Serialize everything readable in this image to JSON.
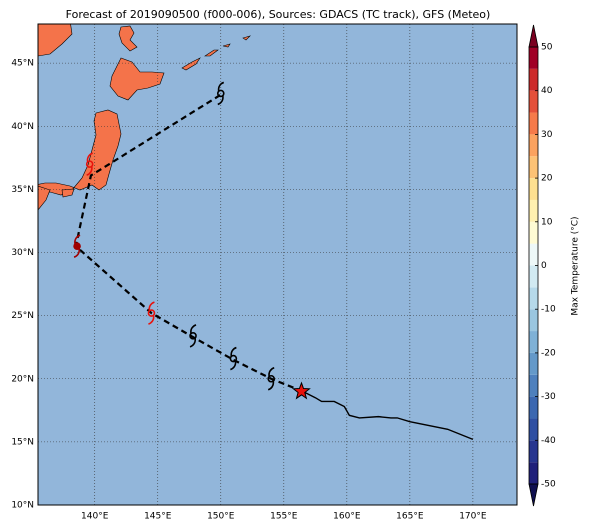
{
  "chart_data": {
    "type": "map",
    "title": "Forecast of 2019090500 (f000-006), Sources: GDACS (TC track), GFS (Meteo)",
    "xlim": [
      135.5,
      173.5
    ],
    "ylim": [
      10,
      48.1
    ],
    "xticks": [
      {
        "value": 140,
        "label": "140°E"
      },
      {
        "value": 145,
        "label": "145°E"
      },
      {
        "value": 150,
        "label": "150°E"
      },
      {
        "value": 155,
        "label": "155°E"
      },
      {
        "value": 160,
        "label": "160°E"
      },
      {
        "value": 165,
        "label": "165°E"
      },
      {
        "value": 170,
        "label": "170°E"
      }
    ],
    "yticks": [
      {
        "value": 10,
        "label": "10°N"
      },
      {
        "value": 15,
        "label": "15°N"
      },
      {
        "value": 20,
        "label": "20°N"
      },
      {
        "value": 25,
        "label": "25°N"
      },
      {
        "value": 30,
        "label": "30°N"
      },
      {
        "value": 35,
        "label": "35°N"
      },
      {
        "value": 40,
        "label": "40°N"
      },
      {
        "value": 45,
        "label": "45°N"
      }
    ],
    "grid": true,
    "observed_track": {
      "color": "#000000",
      "lon": [
        156.5,
        157.5,
        158,
        159,
        159.8,
        160.2,
        161,
        162.5,
        163.5,
        164,
        165,
        168,
        170
      ],
      "lat": [
        19,
        18.5,
        18.2,
        18.2,
        17.8,
        17.1,
        16.9,
        17,
        16.9,
        16.9,
        16.6,
        16,
        15.2
      ]
    },
    "forecast_track": {
      "color": "#000000",
      "lon": [
        156.5,
        154,
        151,
        147.8,
        144.5,
        138.5,
        139.7,
        150
      ],
      "lat": [
        19,
        20,
        21.5,
        23.3,
        25.2,
        30.5,
        36.1,
        42.5
      ]
    },
    "current_position": {
      "lon": 156.4,
      "lat": 19,
      "color": "#e8120c"
    },
    "storm_symbols": [
      {
        "lon": 154,
        "lat": 20,
        "color": "#000000"
      },
      {
        "lon": 151,
        "lat": 21.6,
        "color": "#000000"
      },
      {
        "lon": 147.8,
        "lat": 23.4,
        "color": "#000000"
      },
      {
        "lon": 144.5,
        "lat": 25.2,
        "color": "#e8120c"
      },
      {
        "lon": 138.6,
        "lat": 30.5,
        "color": "#a00000"
      },
      {
        "lon": 139.6,
        "lat": 37,
        "color": "#e8120c"
      },
      {
        "lon": 150,
        "lat": 42.6,
        "color": "#000000"
      }
    ],
    "colorbar": {
      "label": "Max Temperature (°C)",
      "lim": [
        -50,
        50
      ],
      "ticks": [
        -50,
        -40,
        -30,
        -20,
        -10,
        0,
        10,
        20,
        30,
        40,
        50
      ],
      "levels": [
        -50,
        -45,
        -40,
        -35,
        -30,
        -25,
        -20,
        -15,
        -10,
        -5,
        0,
        5,
        10,
        15,
        20,
        25,
        30,
        35,
        40,
        45,
        50
      ],
      "colors": [
        "#20207a",
        "#27358f",
        "#2e4fa2",
        "#3b67b0",
        "#4e80bd",
        "#6499c9",
        "#7fb1d6",
        "#9ac6e0",
        "#b6d9ea",
        "#d2eaf2",
        "#eef8f8",
        "#fffbd4",
        "#fff0b0",
        "#fee090",
        "#fdc275",
        "#fba25f",
        "#f57a4a",
        "#e4503a",
        "#cc2a2a",
        "#a00026"
      ],
      "under_color": "#101050",
      "over_color": "#7a0020"
    }
  }
}
